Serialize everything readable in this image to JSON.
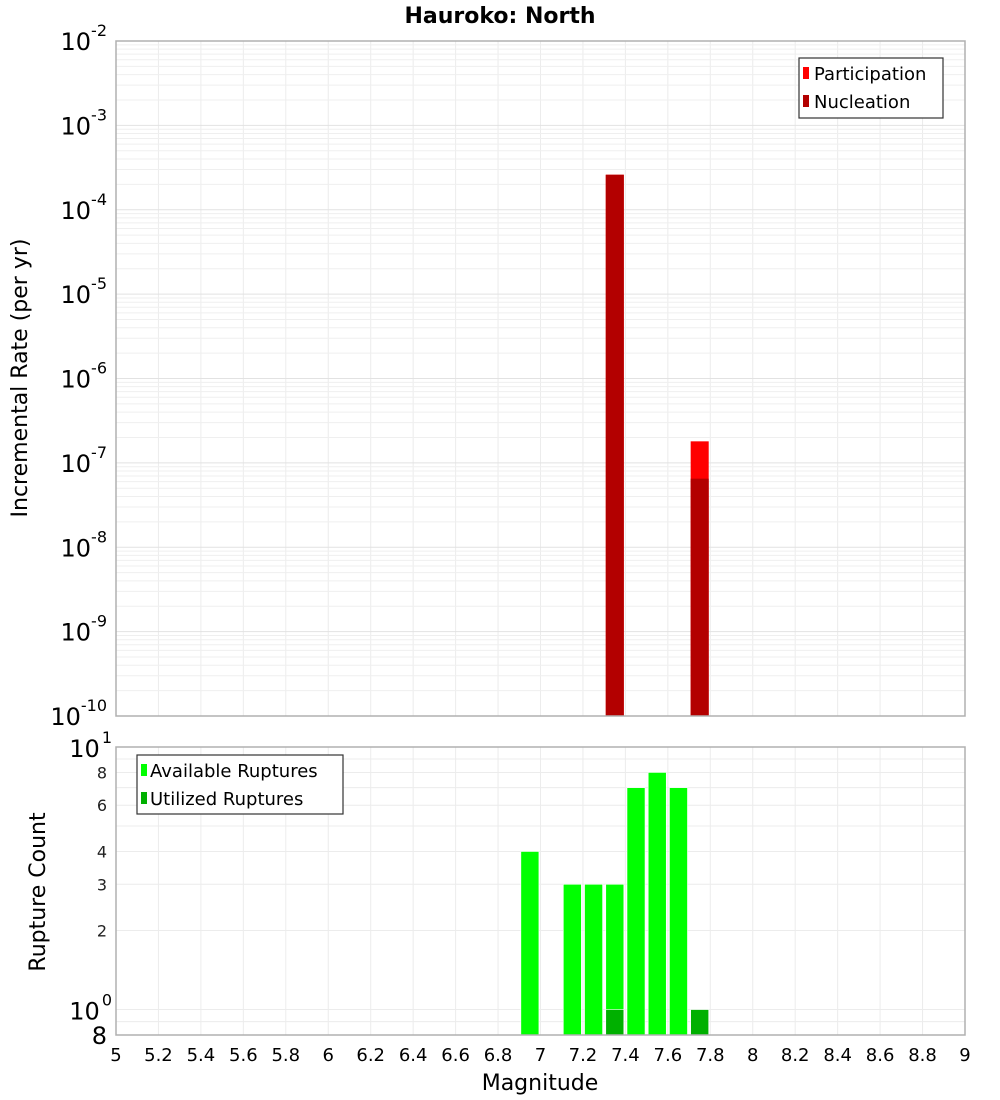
{
  "chart_data": [
    {
      "type": "bar",
      "title": "Hauroko: North",
      "xlabel": "Magnitude",
      "ylabel": "Incremental Rate (per yr)",
      "yscale": "log",
      "xlim": [
        5,
        9
      ],
      "ylim": [
        1e-10,
        0.01
      ],
      "grid": true,
      "legend_position": "top-right",
      "bar_width": 0.085,
      "series": [
        {
          "name": "Participation",
          "color": "#ff0000",
          "x": [
            7.35,
            7.75
          ],
          "values": [
            0.00026,
            1.8e-07
          ]
        },
        {
          "name": "Nucleation",
          "color": "#b30000",
          "x": [
            7.35,
            7.75
          ],
          "values": [
            0.00026,
            6.5e-08
          ]
        }
      ],
      "y_ticks": [
        {
          "base": "10",
          "exp": "-2"
        },
        {
          "base": "10",
          "exp": "-3"
        },
        {
          "base": "10",
          "exp": "-4"
        },
        {
          "base": "10",
          "exp": "-5"
        },
        {
          "base": "10",
          "exp": "-6"
        },
        {
          "base": "10",
          "exp": "-7"
        },
        {
          "base": "10",
          "exp": "-8"
        },
        {
          "base": "10",
          "exp": "-9"
        },
        {
          "base": "10",
          "exp": "-10"
        }
      ]
    },
    {
      "type": "bar",
      "title": "",
      "xlabel": "Magnitude",
      "ylabel": "Rupture Count",
      "yscale": "log",
      "xlim": [
        5,
        9
      ],
      "ylim": [
        0.8,
        10
      ],
      "grid": true,
      "legend_position": "top-left",
      "bar_width": 0.085,
      "series": [
        {
          "name": "Available Ruptures",
          "color": "#00ff00",
          "x": [
            6.95,
            7.15,
            7.25,
            7.35,
            7.45,
            7.55,
            7.65
          ],
          "values": [
            4,
            3,
            3,
            3,
            7,
            8,
            7
          ]
        },
        {
          "name": "Utilized Ruptures",
          "color": "#00b000",
          "x": [
            7.35,
            7.75
          ],
          "values": [
            1,
            1
          ]
        }
      ],
      "y_ticks_major": [
        {
          "base": "10",
          "exp": "1"
        },
        {
          "base": "10",
          "exp": "0"
        }
      ],
      "y_ticks_minor": [
        "8",
        "6",
        "4",
        "3",
        "2",
        "8"
      ]
    }
  ],
  "x_ticks": [
    "5",
    "5.2",
    "5.4",
    "5.6",
    "5.8",
    "6",
    "6.2",
    "6.4",
    "6.6",
    "6.8",
    "7",
    "7.2",
    "7.4",
    "7.6",
    "7.8",
    "8",
    "8.2",
    "8.4",
    "8.6",
    "8.8",
    "9"
  ],
  "labels": {
    "title": "Hauroko: North",
    "top_ylabel": "Incremental Rate (per yr)",
    "bottom_ylabel": "Rupture Count",
    "xlabel": "Magnitude",
    "legend_top": [
      "Participation",
      "Nucleation"
    ],
    "legend_bottom": [
      "Available Ruptures",
      "Utilized Ruptures"
    ]
  }
}
